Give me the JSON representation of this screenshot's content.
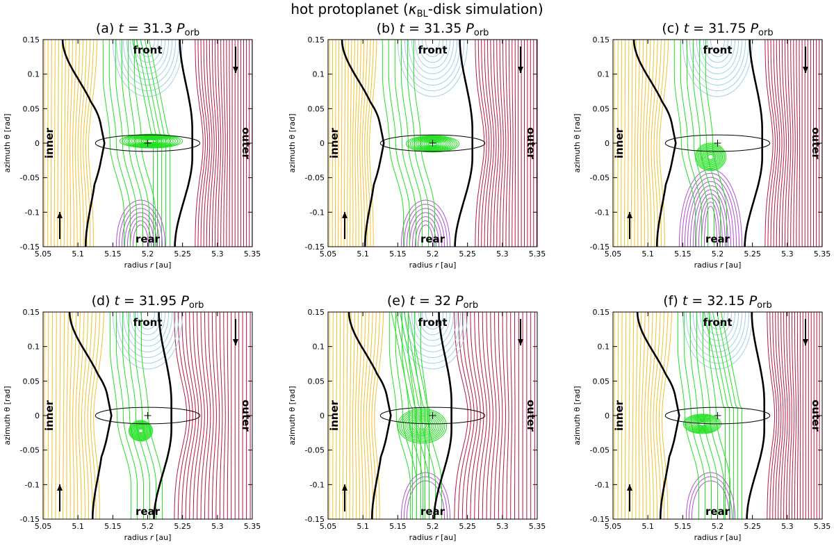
{
  "figure": {
    "title_prefix": "hot protoplanet (",
    "title_kappa": "κ",
    "title_kappa_sub": "BL",
    "title_suffix": "-disk simulation)"
  },
  "chart_data": {
    "type": "contour",
    "xlabel_prefix": "radius ",
    "xlabel_var": "r",
    "xlabel_unit": " [au]",
    "ylabel": "azimuth θ [rad]",
    "xlim": [
      5.05,
      5.35
    ],
    "ylim": [
      -0.15,
      0.15
    ],
    "xticks": [
      "5.05",
      "5.1",
      "5.15",
      "5.2",
      "5.25",
      "5.3",
      "5.35"
    ],
    "yticks": [
      "0.15",
      "0.1",
      "0.05",
      "0",
      "-0.05",
      "-0.1",
      "-0.15"
    ],
    "planet_position": [
      5.2,
      0.0
    ],
    "region_labels": {
      "inner": "inner",
      "outer": "outer",
      "front": "front",
      "rear": "rear"
    },
    "colors": {
      "inner": "#f2c12e",
      "outer": "#b8163f",
      "front": "#9fd0e6",
      "rear": "#b14fd1",
      "bound": "#22e022",
      "separatrix": "#000000"
    },
    "panels": [
      {
        "label": "(a)",
        "t_value": "31.3",
        "sep_left_at_zero": 5.138,
        "sep_right_at_zero": 5.262,
        "bound_center": [
          5.205,
          0.003
        ],
        "bound_radius": [
          0.045,
          0.01
        ],
        "rear_region": "small",
        "front_green": true
      },
      {
        "label": "(b)",
        "t_value": "31.35",
        "sep_left_at_zero": 5.13,
        "sep_right_at_zero": 5.255,
        "bound_center": [
          5.2,
          -0.001
        ],
        "bound_radius": [
          0.038,
          0.012
        ],
        "rear_region": "small",
        "front_green": false
      },
      {
        "label": "(c)",
        "t_value": "31.75",
        "sep_left_at_zero": 5.14,
        "sep_right_at_zero": 5.262,
        "bound_center": [
          5.19,
          -0.02
        ],
        "bound_radius": [
          0.022,
          0.02
        ],
        "rear_region": "large",
        "front_green": false
      },
      {
        "label": "(d)",
        "t_value": "31.95",
        "sep_left_at_zero": 5.148,
        "sep_right_at_zero": 5.232,
        "bound_center": [
          5.19,
          -0.022
        ],
        "bound_radius": [
          0.017,
          0.015
        ],
        "rear_region": "empty",
        "front_green": false
      },
      {
        "label": "(e)",
        "t_value": "32",
        "sep_left_at_zero": 5.14,
        "sep_right_at_zero": 5.225,
        "bound_center": [
          5.185,
          -0.015
        ],
        "bound_radius": [
          0.035,
          0.025
        ],
        "rear_region": "tiny",
        "front_green": true
      },
      {
        "label": "(f)",
        "t_value": "32.15",
        "sep_left_at_zero": 5.145,
        "sep_right_at_zero": 5.265,
        "bound_center": [
          5.178,
          -0.012
        ],
        "bound_radius": [
          0.027,
          0.014
        ],
        "rear_region": "tiny",
        "front_green": true
      }
    ]
  }
}
